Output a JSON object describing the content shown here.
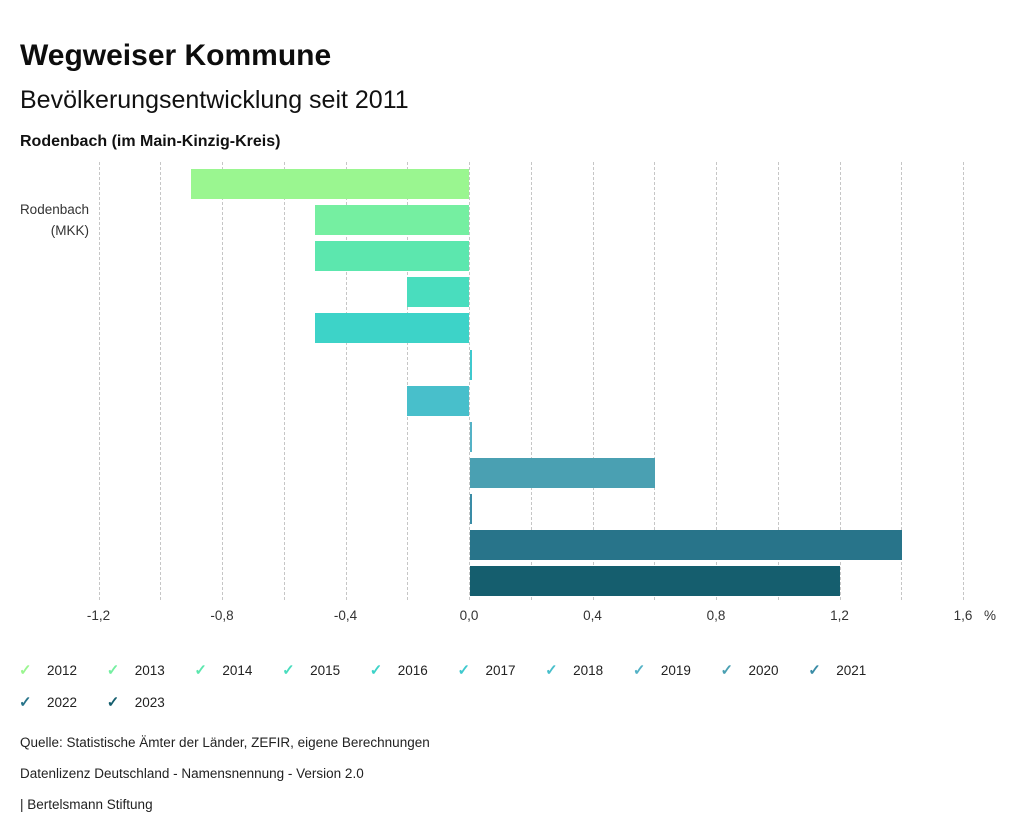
{
  "header": {
    "title": "Wegweiser Kommune",
    "subtitle": "Bevölkerungsentwicklung seit 2011",
    "region": "Rodenbach (im Main-Kinzig-Kreis)"
  },
  "chart_data": {
    "type": "bar",
    "orientation": "horizontal",
    "title": "Bevölkerungsentwicklung seit 2011",
    "group_label": {
      "line1": "Rodenbach",
      "line2": "(MKK)"
    },
    "series": [
      {
        "name": "2012",
        "value": -0.9,
        "color": "#9af690"
      },
      {
        "name": "2013",
        "value": -0.5,
        "color": "#75efa1"
      },
      {
        "name": "2014",
        "value": -0.5,
        "color": "#5ce7ae"
      },
      {
        "name": "2015",
        "value": -0.2,
        "color": "#49ddbe"
      },
      {
        "name": "2016",
        "value": -0.5,
        "color": "#3dd3c8"
      },
      {
        "name": "2017",
        "value": 0.0,
        "color": "#3fc9ce"
      },
      {
        "name": "2018",
        "value": -0.2,
        "color": "#48bfcb"
      },
      {
        "name": "2019",
        "value": 0.0,
        "color": "#54b2c6"
      },
      {
        "name": "2020",
        "value": 0.6,
        "color": "#4aa0b2"
      },
      {
        "name": "2021",
        "value": 0.0,
        "color": "#3a8ca6"
      },
      {
        "name": "2022",
        "value": 1.4,
        "color": "#28748a"
      },
      {
        "name": "2023",
        "value": 1.2,
        "color": "#155e6e"
      }
    ],
    "xlim": [
      -1.3,
      1.7
    ],
    "xticks": [
      -1.2,
      -0.8,
      -0.4,
      0.0,
      0.4,
      0.8,
      1.2,
      1.6
    ],
    "tick_labels": [
      "-1,2",
      "-0,8",
      "-0,4",
      "0,0",
      "0,4",
      "0,8",
      "1,2",
      "1,6"
    ],
    "axis_unit_label": "%",
    "gridline_step": 0.2,
    "grid": "dashed-vertical",
    "legend_position": "bottom"
  },
  "legend": {
    "check_glyph": "✓"
  },
  "footer": {
    "source": "Quelle: Statistische Ämter der Länder, ZEFIR, eigene Berechnungen",
    "license": "Datenlizenz Deutschland - Namensnennung - Version 2.0",
    "attribution": "| Bertelsmann Stiftung"
  }
}
